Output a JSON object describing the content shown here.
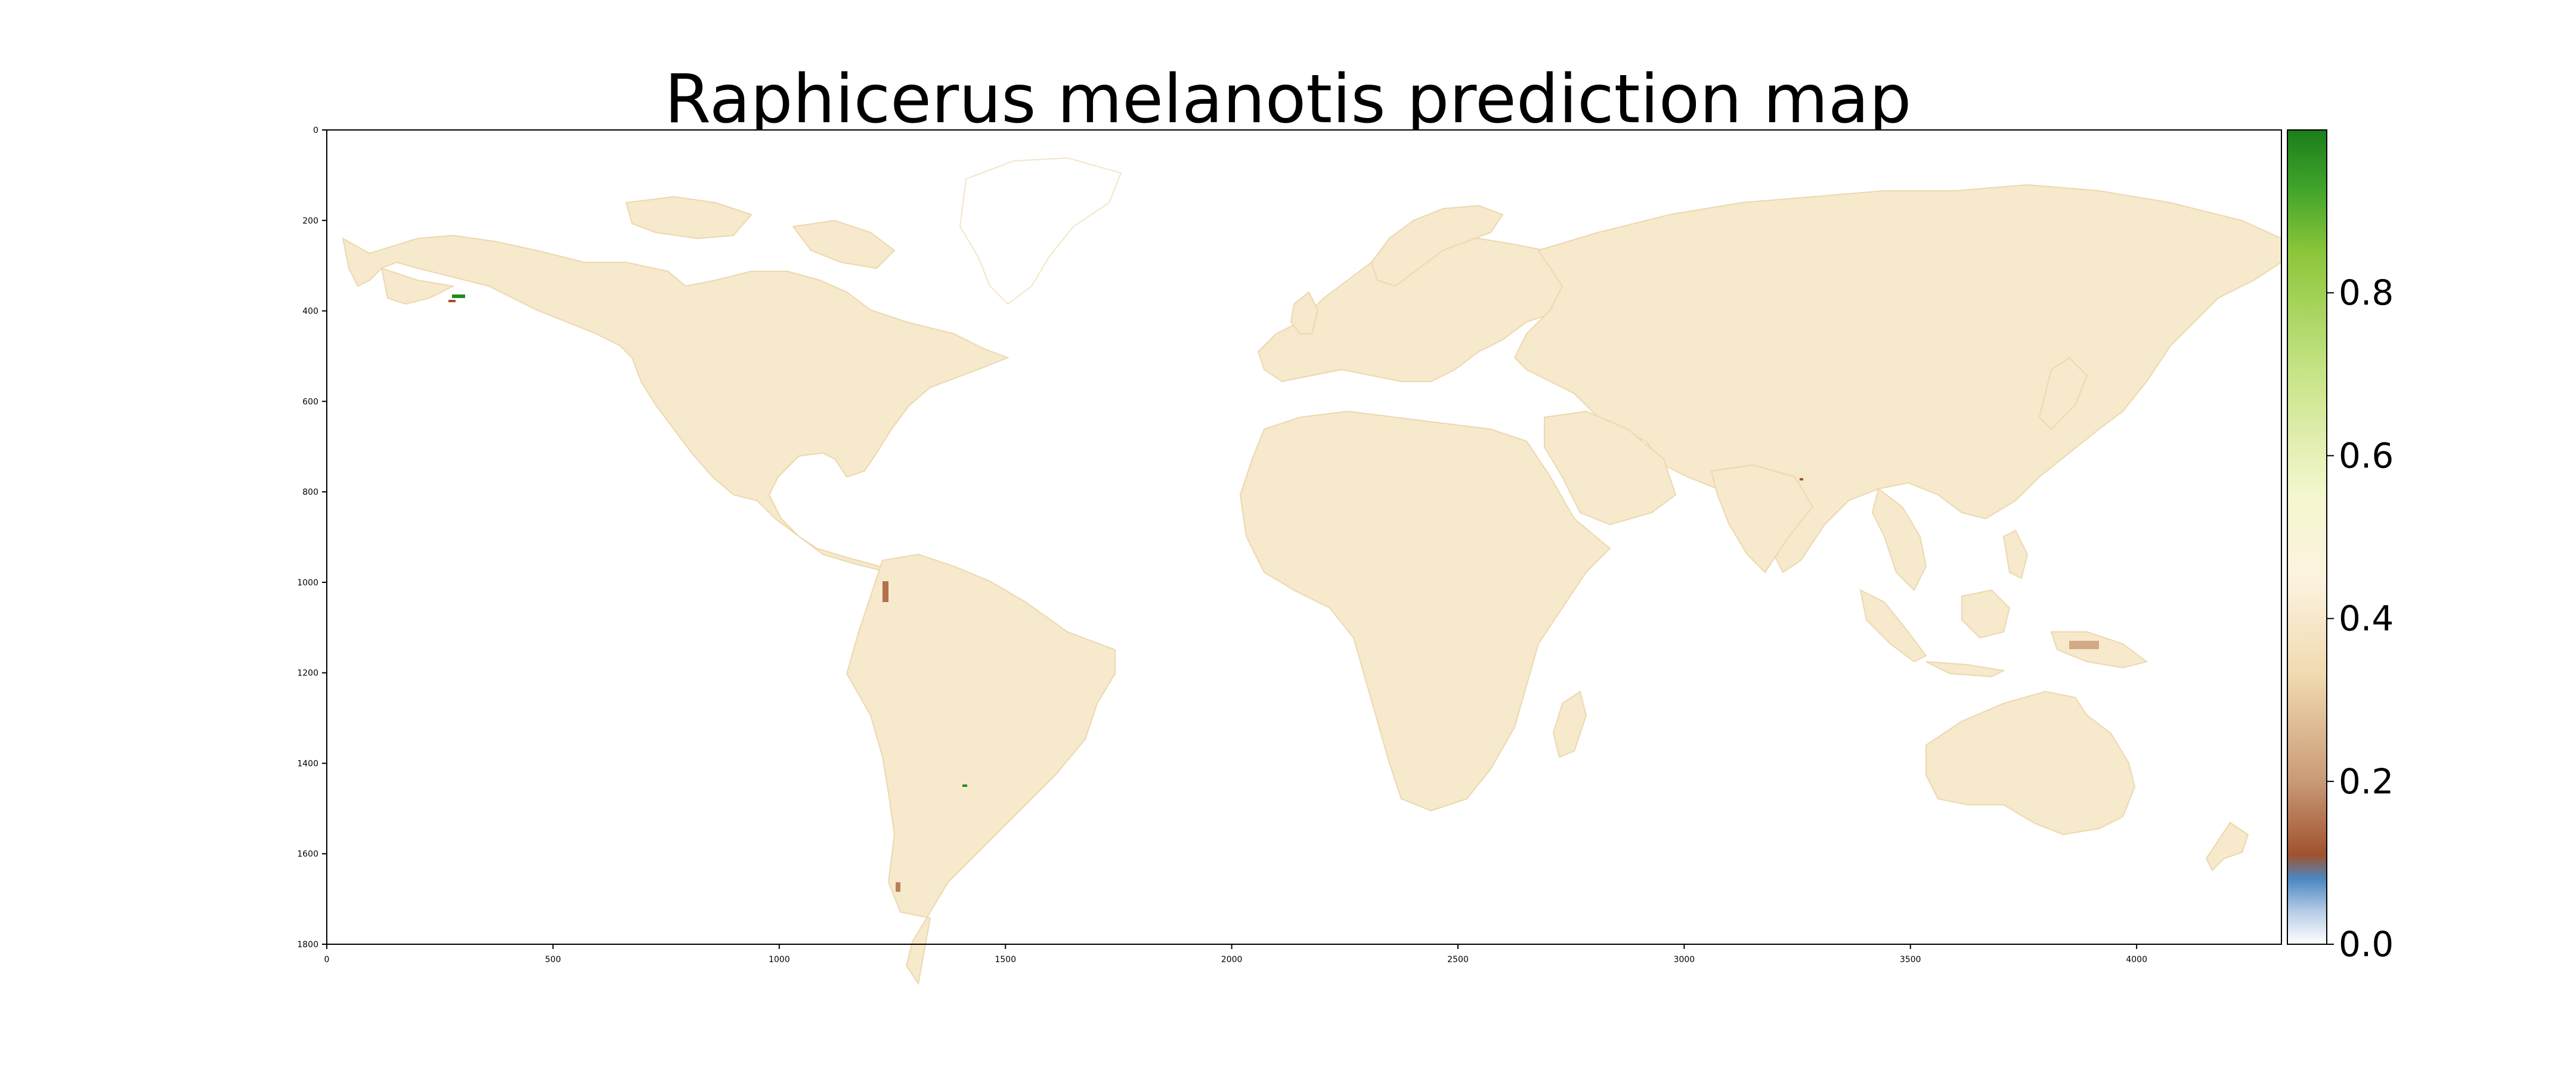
{
  "title": "Raphicerus melanotis prediction map",
  "colors": {
    "land": "#f7e9cb",
    "land_shade": "#f0dcb4",
    "low_brown": "#a0522d",
    "high_green": "#1e8c1e",
    "frame": "#000000",
    "background": "#ffffff"
  },
  "map_axes": {
    "x_range": [
      0,
      4320
    ],
    "y_range": [
      1800,
      0
    ],
    "x_ticks": [
      "0",
      "500",
      "1000",
      "1500",
      "2000",
      "2500",
      "3000",
      "3500",
      "4000"
    ],
    "y_ticks": [
      "0",
      "200",
      "400",
      "600",
      "800",
      "1000",
      "1200",
      "1400",
      "1600",
      "1800"
    ]
  },
  "colorbar": {
    "range": [
      0.0,
      1.0
    ],
    "tick_labels": [
      "0.0",
      "0.2",
      "0.4",
      "0.6",
      "0.8"
    ],
    "stops": [
      {
        "v": 0.0,
        "c": "#ffffff"
      },
      {
        "v": 0.04,
        "c": "#b7cde6"
      },
      {
        "v": 0.08,
        "c": "#4a88c2"
      },
      {
        "v": 0.11,
        "c": "#a0522d"
      },
      {
        "v": 0.2,
        "c": "#c99a76"
      },
      {
        "v": 0.33,
        "c": "#f1d9b0"
      },
      {
        "v": 0.45,
        "c": "#fbf3df"
      },
      {
        "v": 0.55,
        "c": "#f5f7cf"
      },
      {
        "v": 0.7,
        "c": "#c8e488"
      },
      {
        "v": 0.85,
        "c": "#8bc63a"
      },
      {
        "v": 0.93,
        "c": "#3fa32a"
      },
      {
        "v": 1.0,
        "c": "#1b7d1b"
      }
    ]
  }
}
